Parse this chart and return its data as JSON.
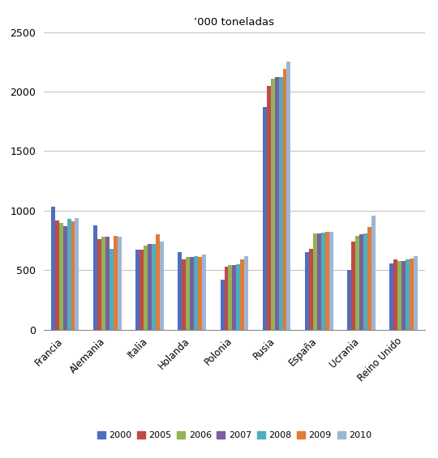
{
  "title": "’000 toneladas",
  "categories": [
    "Francia",
    "Alemania",
    "Italia",
    "Holanda",
    "Polonia",
    "Rusia",
    "España",
    "Ucrania",
    "Reino Unido"
  ],
  "years": [
    "2000",
    "2005",
    "2006",
    "2007",
    "2008",
    "2009",
    "2010"
  ],
  "colors": [
    "#4F6EBD",
    "#BE4B48",
    "#94B354",
    "#7A609E",
    "#4DAEBD",
    "#E07B39",
    "#9EB6D4"
  ],
  "data": {
    "Francia": [
      1030,
      920,
      900,
      870,
      930,
      910,
      940
    ],
    "Alemania": [
      880,
      760,
      780,
      780,
      680,
      790,
      780
    ],
    "Italia": [
      670,
      675,
      710,
      720,
      720,
      800,
      740
    ],
    "Holanda": [
      650,
      590,
      610,
      610,
      620,
      610,
      630
    ],
    "Polonia": [
      420,
      530,
      540,
      540,
      550,
      590,
      620
    ],
    "Rusia": [
      1870,
      2050,
      2110,
      2120,
      2120,
      2190,
      2250
    ],
    "España": [
      650,
      680,
      810,
      810,
      815,
      820,
      825
    ],
    "Ucrania": [
      500,
      740,
      790,
      800,
      810,
      860,
      960
    ],
    "Reino Unido": [
      560,
      590,
      580,
      580,
      590,
      600,
      620
    ]
  },
  "ylim": [
    0,
    2500
  ],
  "yticks": [
    0,
    500,
    1000,
    1500,
    2000,
    2500
  ],
  "figsize": [
    5.4,
    5.65
  ],
  "dpi": 100
}
